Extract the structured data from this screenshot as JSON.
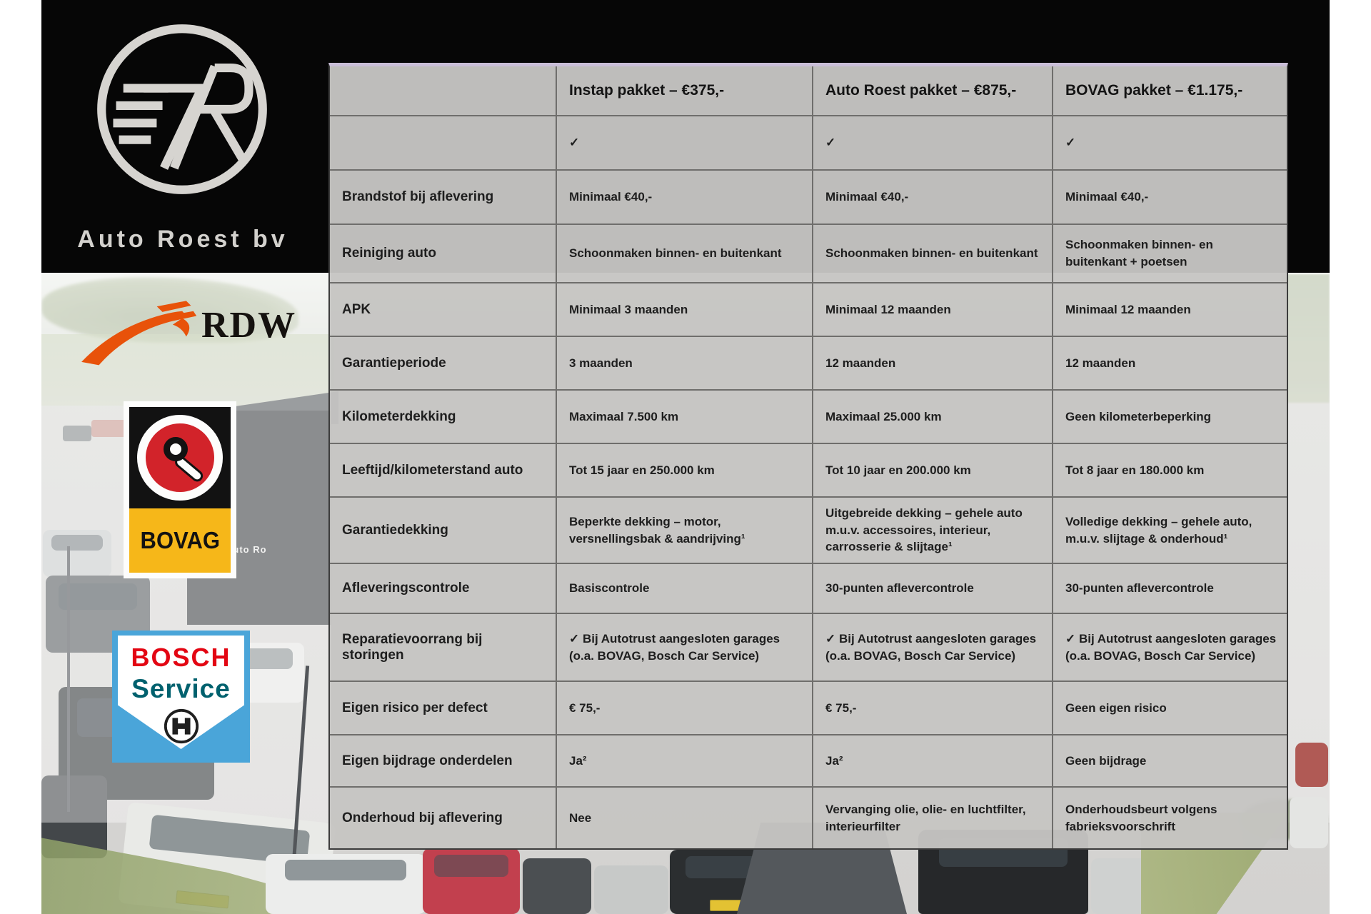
{
  "brand": {
    "name": "Auto Roest bv",
    "monogram": "7R"
  },
  "logos": {
    "rdw": {
      "text": "RDW",
      "orange": "#e8520a"
    },
    "bovag": {
      "text": "BOVAG",
      "red": "#d2232a",
      "yellow": "#f6b719"
    },
    "bosch": {
      "line1": "BOSCH",
      "line2": "Service",
      "blue": "#4aa5d9",
      "red": "#e30613",
      "teal": "#00616e"
    }
  },
  "photo": {
    "building_sign": "Auto Ro"
  },
  "table": {
    "background": "#c6c5c3",
    "accent_top_border": "#c9bed7",
    "columns": [
      "",
      "Instap pakket – €375,-",
      "Auto Roest pakket – €875,-",
      "BOVAG pakket – €1.175,-"
    ],
    "rows": [
      {
        "label": "",
        "values": [
          "✓",
          "✓",
          "✓"
        ]
      },
      {
        "label": "Brandstof bij aflevering",
        "values": [
          "Minimaal €40,-",
          "Minimaal €40,-",
          "Minimaal €40,-"
        ]
      },
      {
        "label": "Reiniging auto",
        "values": [
          "Schoonmaken binnen- en buitenkant",
          "Schoonmaken binnen- en buitenkant",
          "Schoonmaken binnen- en buitenkant + poetsen"
        ]
      },
      {
        "label": "APK",
        "values": [
          "Minimaal 3 maanden",
          "Minimaal 12 maanden",
          "Minimaal 12 maanden"
        ]
      },
      {
        "label": "Garantieperiode",
        "values": [
          "3 maanden",
          "12 maanden",
          "12 maanden"
        ]
      },
      {
        "label": "Kilometerdekking",
        "values": [
          "Maximaal 7.500 km",
          "Maximaal 25.000 km",
          "Geen kilometerbeperking"
        ]
      },
      {
        "label": "Leeftijd/kilometerstand auto",
        "values": [
          "Tot 15 jaar en 250.000 km",
          "Tot 10 jaar en 200.000 km",
          "Tot 8 jaar en 180.000 km"
        ]
      },
      {
        "label": "Garantiedekking",
        "values": [
          "Beperkte dekking – motor, versnellingsbak & aandrijving¹",
          "Uitgebreide dekking – gehele auto m.u.v. accessoires, interieur, carrosserie & slijtage¹",
          "Volledige dekking – gehele auto, m.u.v. slijtage & onderhoud¹"
        ]
      },
      {
        "label": "Afleveringscontrole",
        "values": [
          "Basiscontrole",
          "30-punten aflevercontrole",
          "30-punten aflevercontrole"
        ]
      },
      {
        "label": "Reparatievoorrang bij storingen",
        "values": [
          "✓ Bij Autotrust aangesloten garages (o.a. BOVAG, Bosch Car Service)",
          "✓ Bij Autotrust aangesloten garages (o.a. BOVAG, Bosch Car Service)",
          "✓ Bij Autotrust aangesloten garages (o.a. BOVAG, Bosch Car Service)"
        ]
      },
      {
        "label": "Eigen risico per defect",
        "values": [
          "€ 75,-",
          "€ 75,-",
          "Geen eigen risico"
        ]
      },
      {
        "label": "Eigen bijdrage onderdelen",
        "values": [
          "Ja²",
          "Ja²",
          "Geen bijdrage"
        ]
      },
      {
        "label": "Onderhoud bij aflevering",
        "values": [
          "Nee",
          "Vervanging olie, olie- en luchtfilter, interieurfilter",
          "Onderhoudsbeurt volgens fabrieksvoorschrift"
        ]
      }
    ]
  }
}
